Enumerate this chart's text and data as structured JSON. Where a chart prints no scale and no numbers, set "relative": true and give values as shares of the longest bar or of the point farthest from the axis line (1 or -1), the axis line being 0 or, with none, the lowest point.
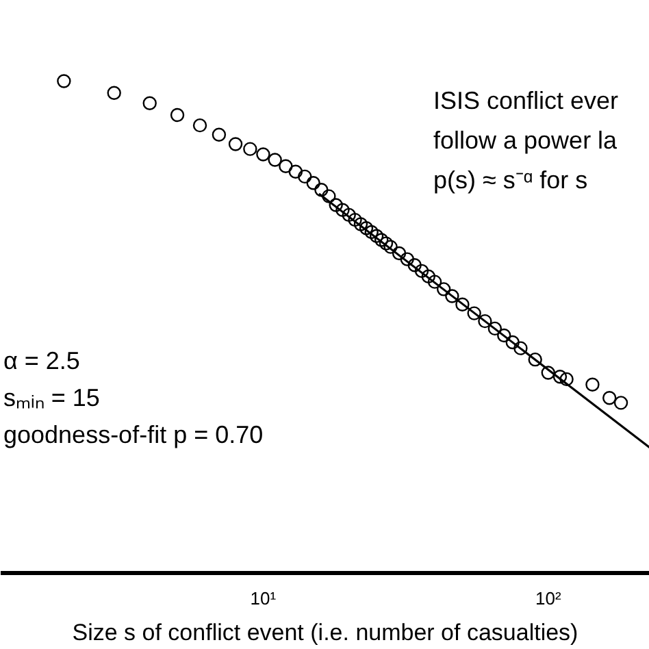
{
  "chart_data": {
    "type": "scatter",
    "xlabel": "Size s of conflict event (i.e. number of casualties)",
    "relative": true,
    "log": "x",
    "xlim": [
      1.2,
      227
    ],
    "xticks": [
      {
        "value": 10,
        "label": "10¹"
      },
      {
        "value": 100,
        "label": "10²"
      }
    ],
    "grid": false,
    "annotations": [
      "ISIS conflict ever",
      "follow a power la",
      "p(s) ≈ s⁻ᵅ for s",
      "α = 2.5",
      "sₘᵢₙ = 15",
      "goodness-of-fit  p = 0.70"
    ],
    "series": [
      {
        "marker": "circle",
        "color": "#000000",
        "x": [
          2,
          3,
          4,
          5,
          6,
          7,
          8,
          9,
          10,
          11,
          12,
          13,
          14,
          15,
          16,
          17,
          18,
          19,
          20,
          21,
          22,
          23,
          24,
          25,
          26,
          27,
          28,
          30,
          32,
          34,
          36,
          38,
          40,
          43,
          46,
          50,
          55,
          60,
          65,
          70,
          75,
          80,
          90,
          100,
          110,
          116,
          143,
          164,
          180
        ],
        "values": [
          1.0,
          0.976,
          0.955,
          0.931,
          0.91,
          0.891,
          0.872,
          0.862,
          0.851,
          0.84,
          0.827,
          0.816,
          0.806,
          0.793,
          0.779,
          0.766,
          0.748,
          0.738,
          0.728,
          0.718,
          0.709,
          0.701,
          0.693,
          0.685,
          0.677,
          0.67,
          0.663,
          0.65,
          0.638,
          0.626,
          0.614,
          0.603,
          0.592,
          0.577,
          0.563,
          0.546,
          0.528,
          0.512,
          0.497,
          0.483,
          0.469,
          0.457,
          0.434,
          0.407,
          0.399,
          0.394,
          0.383,
          0.356,
          0.346
        ]
      },
      {
        "type": "line",
        "marker": "none",
        "color": "#000000",
        "x": [
          15.7,
          227
        ],
        "values": [
          0.771,
          0.255
        ]
      }
    ]
  }
}
